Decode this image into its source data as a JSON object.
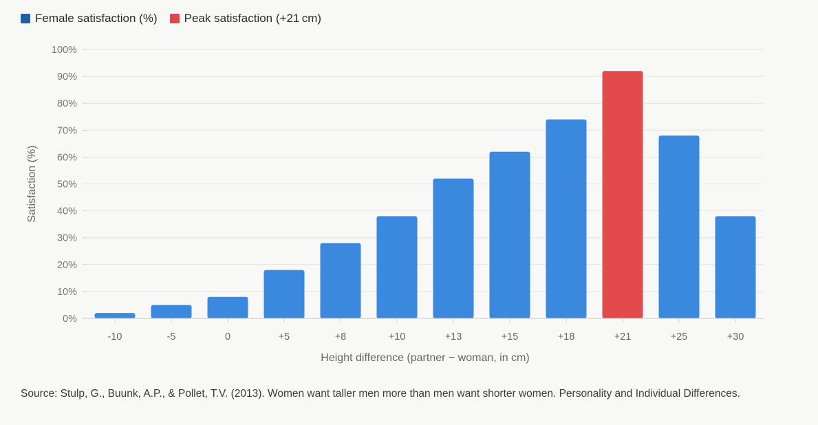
{
  "legend": [
    {
      "label": "Female satisfaction (%)",
      "color": "#1f5fa8"
    },
    {
      "label": "Peak satisfaction (+21 cm)",
      "color": "#e0474c"
    }
  ],
  "source": "Source: Stulp, G., Buunk, A.P., & Pollet, T.V. (2013). Women want taller men more than men want shorter women. Personality and Individual Differences.",
  "chart_data": {
    "type": "bar",
    "categories": [
      "-10",
      "-5",
      "0",
      "+5",
      "+8",
      "+10",
      "+13",
      "+15",
      "+18",
      "+21",
      "+25",
      "+30"
    ],
    "series": [
      {
        "name": "Female satisfaction (%)",
        "values": [
          2,
          5,
          8,
          18,
          28,
          38,
          52,
          62,
          74,
          92,
          68,
          38
        ]
      }
    ],
    "highlight": {
      "category": "+21",
      "label": "Peak satisfaction (+21 cm)"
    },
    "xlabel": "Height difference (partner − woman, in cm)",
    "ylabel": "Satisfaction (%)",
    "ylim": [
      0,
      100
    ],
    "yticks": [
      "0%",
      "10%",
      "20%",
      "30%",
      "40%",
      "50%",
      "60%",
      "70%",
      "80%",
      "90%",
      "100%"
    ],
    "grid": true,
    "legend_position": "top-left",
    "colors": {
      "bar": "#3a89de",
      "highlight": "#e24a4c",
      "grid": "#e4e4e4",
      "axis": "#cfcfcf"
    }
  }
}
